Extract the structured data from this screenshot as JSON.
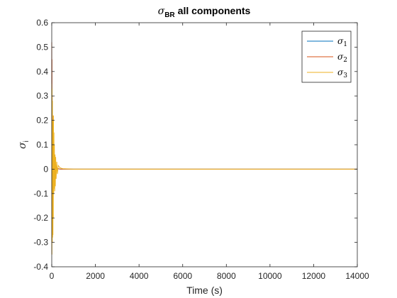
{
  "chart_data": {
    "type": "line",
    "title": {
      "symbol": "σ",
      "subscript": "BR",
      "text": "all components"
    },
    "xlabel": "Time (s)",
    "ylabel": {
      "symbol": "σ",
      "subscript": "i"
    },
    "xlim": [
      0,
      14000
    ],
    "ylim": [
      -0.4,
      0.6
    ],
    "xticks": [
      0,
      2000,
      4000,
      6000,
      8000,
      10000,
      12000,
      14000
    ],
    "yticks": [
      -0.4,
      -0.3,
      -0.2,
      -0.1,
      0,
      0.1,
      0.2,
      0.3,
      0.4,
      0.5,
      0.6
    ],
    "xtick_labels": [
      "0",
      "2000",
      "4000",
      "6000",
      "8000",
      "10000",
      "12000",
      "14000"
    ],
    "ytick_labels": [
      "-0.4",
      "-0.3",
      "-0.2",
      "-0.1",
      "0",
      "0.1",
      "0.2",
      "0.3",
      "0.4",
      "0.5",
      "0.6"
    ],
    "grid": false,
    "legend_position": "top-right",
    "series": [
      {
        "name": "σ1",
        "symbol": "σ",
        "subscript": "1",
        "color": "#0072BD",
        "x": [
          0,
          10,
          20,
          40,
          60,
          100,
          150,
          250,
          400,
          1000,
          14000
        ],
        "y": [
          0.12,
          -0.05,
          0.06,
          -0.02,
          0.02,
          -0.01,
          0.005,
          0.002,
          0,
          0,
          0
        ]
      },
      {
        "name": "σ2",
        "symbol": "σ",
        "subscript": "2",
        "color": "#D95319",
        "x": [
          0,
          5,
          10,
          15,
          20,
          30,
          40,
          50,
          60,
          80,
          100,
          150,
          250,
          400,
          1000,
          14000
        ],
        "y": [
          0.52,
          -0.15,
          0.45,
          -0.3,
          0.3,
          -0.2,
          0.22,
          -0.15,
          0.1,
          -0.06,
          0.04,
          0.01,
          0.003,
          0,
          0,
          0
        ]
      },
      {
        "name": "σ3",
        "symbol": "σ",
        "subscript": "3",
        "color": "#EDB120",
        "x": [
          0,
          8,
          16,
          24,
          32,
          40,
          48,
          56,
          64,
          72,
          80,
          90,
          100,
          110,
          120,
          135,
          150,
          165,
          180,
          200,
          230,
          260,
          300,
          350,
          400,
          500,
          700,
          1000,
          14000
        ],
        "y": [
          0.35,
          -0.35,
          0.33,
          -0.3,
          0.28,
          -0.28,
          0.2,
          -0.27,
          0.18,
          -0.2,
          0.22,
          -0.1,
          0.15,
          -0.08,
          0.1,
          -0.09,
          0.06,
          -0.07,
          0.05,
          -0.04,
          0.03,
          -0.02,
          0.015,
          0.008,
          0.005,
          0.002,
          0.001,
          0,
          0
        ]
      }
    ]
  }
}
